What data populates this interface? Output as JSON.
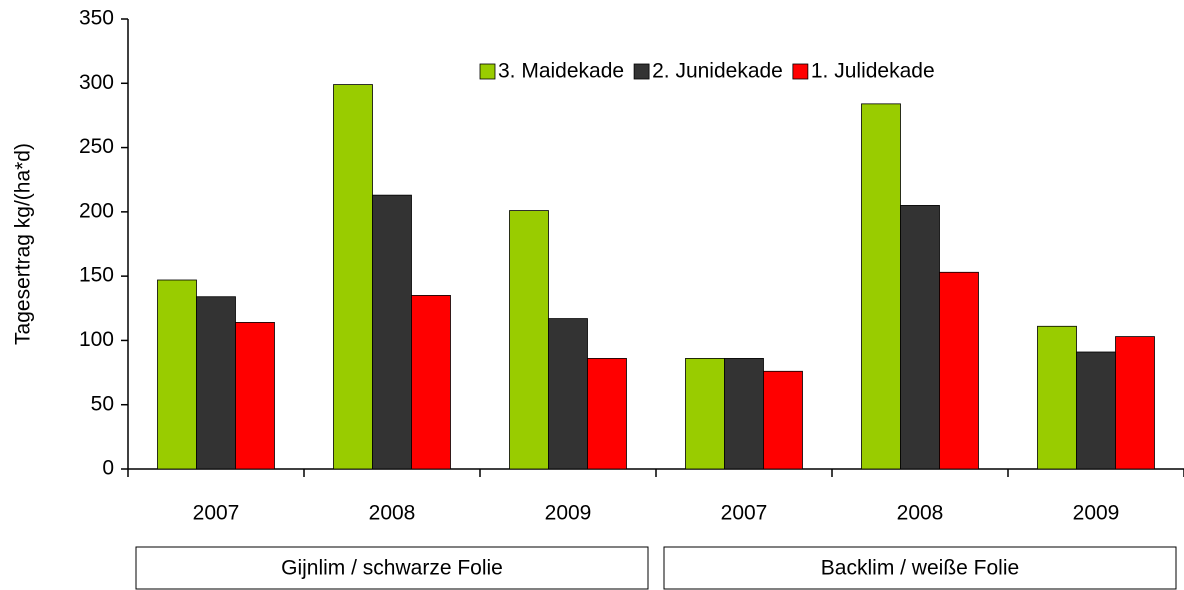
{
  "chart_data": {
    "type": "bar",
    "y_label": "Tagesertrag kg/(ha*d)",
    "categories": [
      "2007",
      "2008",
      "2009",
      "2007",
      "2008",
      "2009"
    ],
    "group_labels": [
      "Gijnlim / schwarze Folie",
      "Backlim / weiße Folie"
    ],
    "series": [
      {
        "name": "3. Maidekade",
        "color": "#99cc00",
        "values": [
          147,
          299,
          201,
          86,
          284,
          111
        ]
      },
      {
        "name": "2. Junidekade",
        "color": "#333333",
        "values": [
          134,
          213,
          117,
          86,
          205,
          91
        ]
      },
      {
        "name": "1. Julidekade",
        "color": "#ff0000",
        "values": [
          114,
          135,
          86,
          76,
          153,
          103
        ]
      }
    ],
    "ylim": [
      0,
      350
    ],
    "yticks": [
      0,
      50,
      100,
      150,
      200,
      250,
      300,
      350
    ],
    "legend": "top"
  }
}
